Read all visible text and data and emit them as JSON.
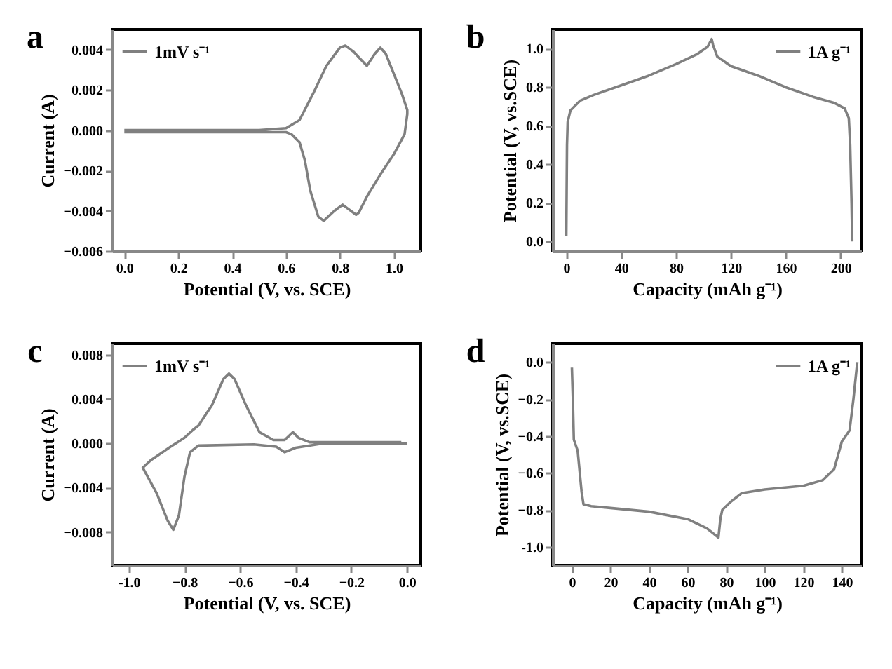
{
  "chart_data": [
    {
      "type": "line",
      "annotations": [
        "a"
      ],
      "xlabel": "Potential (V, vs. SCE)",
      "ylabel": "Current (A)",
      "legend": "top left",
      "xlim": [
        -0.045,
        1.1
      ],
      "ylim": [
        -0.006,
        0.005
      ],
      "xticks": [
        {
          "value": 0,
          "label": "0.0"
        },
        0.2,
        0.4,
        0.6,
        0.8,
        {
          "value": 1,
          "label": "1.0"
        }
      ],
      "yticks": [
        -0.006,
        -0.004,
        -0.002,
        {
          "value": 0,
          "label": "0.000"
        },
        0.002,
        0.004
      ],
      "series": [
        {
          "name": "1mV s⁻¹",
          "color": "#808080",
          "x": [
            0,
            0.5,
            0.6,
            0.65,
            0.7,
            0.75,
            0.8,
            0.82,
            0.85,
            0.9,
            0.93,
            0.95,
            0.97,
            1.0,
            1.03,
            1.05,
            1.05,
            1.04,
            1.0,
            0.95,
            0.9,
            0.87,
            0.86,
            0.83,
            0.81,
            0.78,
            0.74,
            0.72,
            0.69,
            0.67,
            0.65,
            0.62,
            0.6,
            0.4,
            0.0
          ],
          "values": [
            0,
            0,
            0.0001,
            0.0005,
            0.0018,
            0.0032,
            0.0041,
            0.0042,
            0.0039,
            0.0032,
            0.0038,
            0.0041,
            0.0038,
            0.0028,
            0.0018,
            0.001,
            0.0008,
            -0.0002,
            -0.0012,
            -0.0022,
            -0.0033,
            -0.0041,
            -0.0042,
            -0.0039,
            -0.0037,
            -0.004,
            -0.0045,
            -0.0043,
            -0.003,
            -0.0015,
            -0.0006,
            -0.0002,
            -0.0001,
            -0.0001,
            -0.0001
          ]
        }
      ]
    },
    {
      "type": "line",
      "annotations": [
        "b"
      ],
      "xlabel": "Capacity (mAh g⁻¹)",
      "ylabel": "Potential (V, vs.SCE)",
      "legend": "top right",
      "xlim": [
        -10,
        215
      ],
      "ylim": [
        -0.05,
        1.1
      ],
      "xticks": [
        0,
        40,
        80,
        120,
        160,
        200
      ],
      "yticks": [
        {
          "value": 0,
          "label": "0.0"
        },
        0.2,
        0.4,
        0.6,
        0.8,
        {
          "value": 1,
          "label": "1.0"
        }
      ],
      "series": [
        {
          "name": "1A g⁻¹",
          "color": "#808080",
          "x": [
            0,
            0.5,
            1,
            3,
            10,
            20,
            40,
            60,
            80,
            95,
            103,
            106,
            107,
            110,
            120,
            140,
            160,
            180,
            195,
            203,
            206,
            207,
            208,
            208.5
          ],
          "values": [
            0.03,
            0.5,
            0.62,
            0.68,
            0.73,
            0.76,
            0.81,
            0.86,
            0.92,
            0.97,
            1.01,
            1.05,
            1.02,
            0.96,
            0.91,
            0.86,
            0.8,
            0.75,
            0.72,
            0.69,
            0.64,
            0.5,
            0.2,
            0
          ]
        }
      ]
    },
    {
      "type": "line",
      "annotations": [
        "c"
      ],
      "xlabel": "Potential (V, vs. SCE)",
      "ylabel": "Current (A)",
      "legend": "top left",
      "xlim": [
        -1.06,
        0.05
      ],
      "ylim": [
        -0.011,
        0.009
      ],
      "xticks": [
        {
          "value": -1,
          "label": "-1.0"
        },
        -0.8,
        -0.6,
        -0.4,
        -0.2,
        {
          "value": 0,
          "label": "0.0"
        }
      ],
      "yticks": [
        -0.008,
        -0.004,
        {
          "value": 0,
          "label": "0.000"
        },
        0.004,
        0.008
      ],
      "series": [
        {
          "name": "1mV s⁻¹",
          "color": "#808080",
          "x": [
            0,
            -0.3,
            -0.4,
            -0.44,
            -0.47,
            -0.55,
            -0.75,
            -0.78,
            -0.8,
            -0.82,
            -0.84,
            -0.86,
            -0.9,
            -0.95,
            -0.92,
            -0.85,
            -0.8,
            -0.77,
            -0.75,
            -0.7,
            -0.66,
            -0.64,
            -0.62,
            -0.58,
            -0.53,
            -0.48,
            -0.44,
            -0.41,
            -0.39,
            -0.35,
            -0.02
          ],
          "values": [
            0,
            0,
            -0.0004,
            -0.0008,
            -0.0003,
            -0.0001,
            -0.0002,
            -0.0008,
            -0.003,
            -0.0065,
            -0.0078,
            -0.007,
            -0.0045,
            -0.0022,
            -0.0015,
            -0.0003,
            0.0005,
            0.0012,
            0.0016,
            0.0035,
            0.0058,
            0.0063,
            0.0058,
            0.0035,
            0.001,
            0.0003,
            0.0003,
            0.001,
            0.0005,
            0.0001,
            0.0001
          ]
        }
      ]
    },
    {
      "type": "line",
      "annotations": [
        "d"
      ],
      "xlabel": "Capacity (mAh g⁻¹)",
      "ylabel": "Potential (V, vs.SCE)",
      "legend": "top right",
      "xlim": [
        -10,
        150
      ],
      "ylim": [
        -1.1,
        0.1
      ],
      "xticks": [
        0,
        20,
        40,
        60,
        80,
        100,
        120,
        140
      ],
      "yticks": [
        {
          "value": -1,
          "label": "-1.0"
        },
        -0.8,
        -0.6,
        -0.4,
        -0.2,
        {
          "value": 0,
          "label": "0.0"
        }
      ],
      "series": [
        {
          "name": "1A g⁻¹",
          "color": "#808080",
          "x": [
            0,
            0.5,
            1,
            3,
            5,
            6,
            10,
            20,
            40,
            60,
            70,
            76,
            77,
            78,
            82,
            88,
            100,
            120,
            130,
            136,
            140,
            142,
            144,
            146,
            148
          ],
          "values": [
            -0.03,
            -0.2,
            -0.42,
            -0.48,
            -0.7,
            -0.77,
            -0.78,
            -0.79,
            -0.81,
            -0.85,
            -0.9,
            -0.95,
            -0.85,
            -0.8,
            -0.76,
            -0.71,
            -0.69,
            -0.67,
            -0.64,
            -0.58,
            -0.43,
            -0.4,
            -0.37,
            -0.2,
            0
          ]
        }
      ]
    }
  ]
}
